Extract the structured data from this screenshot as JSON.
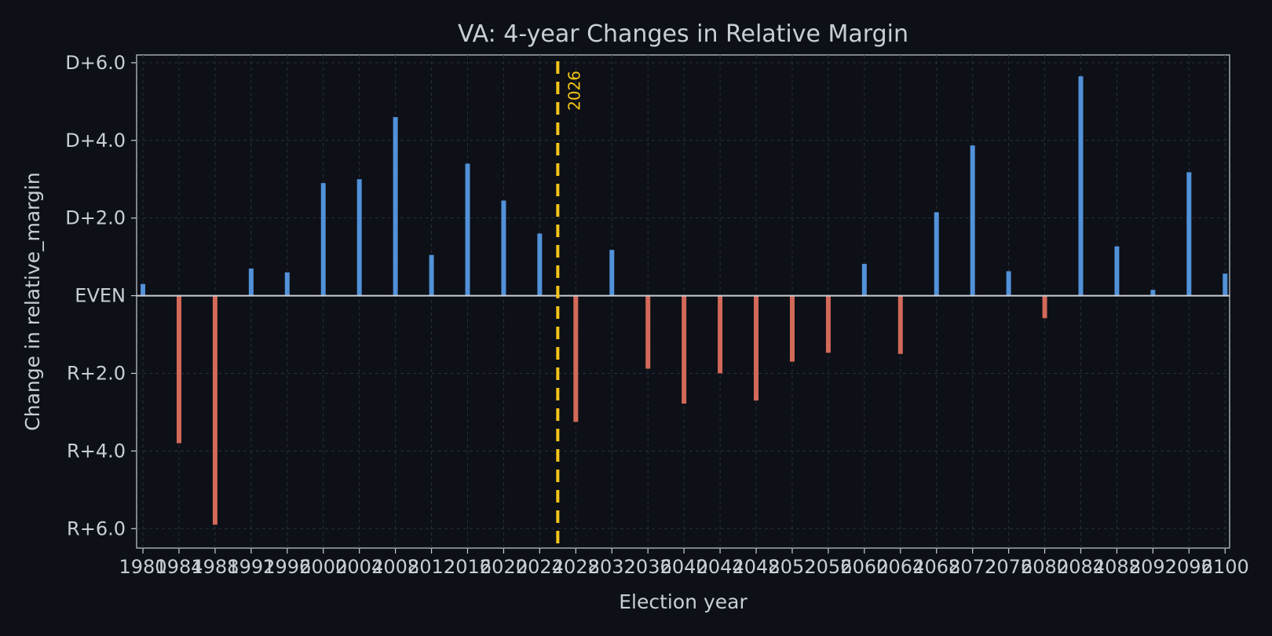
{
  "chart_data": {
    "type": "bar",
    "title": "VA: 4-year Changes in Relative Margin",
    "xlabel": "Election year",
    "ylabel": "Change in relative_margin",
    "x": [
      1980,
      1984,
      1988,
      1992,
      1996,
      2000,
      2004,
      2008,
      2012,
      2016,
      2020,
      2024,
      2028,
      2032,
      2036,
      2040,
      2044,
      2048,
      2052,
      2056,
      2060,
      2064,
      2068,
      2072,
      2076,
      2080,
      2084,
      2088,
      2092,
      2096,
      2100
    ],
    "values": [
      0.3,
      -3.8,
      -5.9,
      0.7,
      0.6,
      2.9,
      3.0,
      4.6,
      1.05,
      3.4,
      2.45,
      1.6,
      -3.25,
      1.18,
      -1.88,
      -2.78,
      -2.0,
      -2.7,
      -1.7,
      -1.47,
      0.82,
      -1.5,
      2.15,
      3.87,
      0.63,
      -0.58,
      5.65,
      1.27,
      0.15,
      3.18,
      0.57
    ],
    "xlim": [
      1979.3,
      2100.5
    ],
    "ylim": [
      -6.5,
      6.2
    ],
    "y_ticks": [
      6,
      4,
      2,
      0,
      -2,
      -4,
      -6
    ],
    "y_tick_labels": [
      "D+6.0",
      "D+4.0",
      "D+2.0",
      "EVEN",
      "R+2.0",
      "R+4.0",
      "R+6.0"
    ],
    "marker": {
      "x": 2026,
      "label": "2026",
      "color": "#f5c518"
    },
    "colors": {
      "positive": "#5aa0ee",
      "negative": "#e8735f"
    },
    "grid": true
  }
}
